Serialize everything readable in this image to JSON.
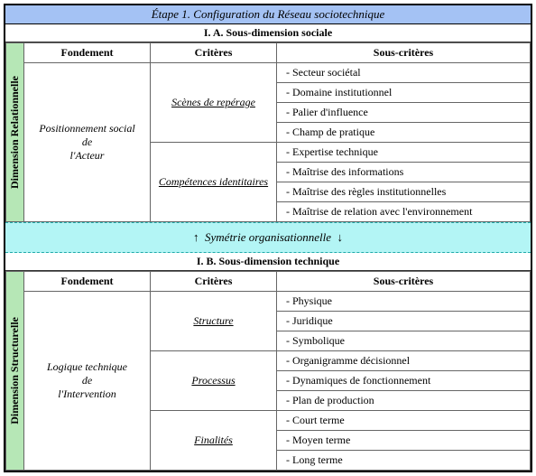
{
  "title": "Étape 1. Configuration du Réseau sociotechnique",
  "sectionA": {
    "heading": "I. A. Sous-dimension sociale",
    "sideLabel": "Dimension Relationnelle",
    "headers": {
      "fondement": "Fondement",
      "criteres": "Critères",
      "sousCriteres": "Sous-critères"
    },
    "fondement": "Positionnement social\nde\nl'Acteur",
    "groups": [
      {
        "critere": "Scènes de repérage",
        "items": [
          "- Secteur sociétal",
          "- Domaine institutionnel",
          "- Palier d'influence",
          "- Champ de pratique"
        ]
      },
      {
        "critere": "Compétences identitaires",
        "items": [
          "- Expertise technique",
          "- Maîtrise des informations",
          "- Maîtrise des règles institutionnelles",
          "- Maîtrise de relation avec l'environnement"
        ]
      }
    ]
  },
  "symmetry": {
    "up": "↑",
    "text": "Symétrie organisationnelle",
    "down": "↓"
  },
  "sectionB": {
    "heading": "I. B. Sous-dimension technique",
    "sideLabel": "Dimension Structurelle",
    "headers": {
      "fondement": "Fondement",
      "criteres": "Critères",
      "sousCriteres": "Sous-critères"
    },
    "fondement": "Logique technique\nde\nl'Intervention",
    "groups": [
      {
        "critere": "Structure",
        "items": [
          "- Physique",
          "- Juridique",
          "- Symbolique"
        ]
      },
      {
        "critere": "Processus",
        "items": [
          "- Organigramme décisionnel",
          "- Dynamiques de fonctionnement",
          "- Plan de production"
        ]
      },
      {
        "critere": "Finalités",
        "items": [
          "- Court terme",
          "- Moyen terme",
          "- Long terme"
        ]
      }
    ]
  },
  "colors": {
    "titleBg": "#a4c2f4",
    "sideBg": "#b6e7b6",
    "symBg": "#b3f5f5",
    "symBorder": "#2aa198"
  }
}
